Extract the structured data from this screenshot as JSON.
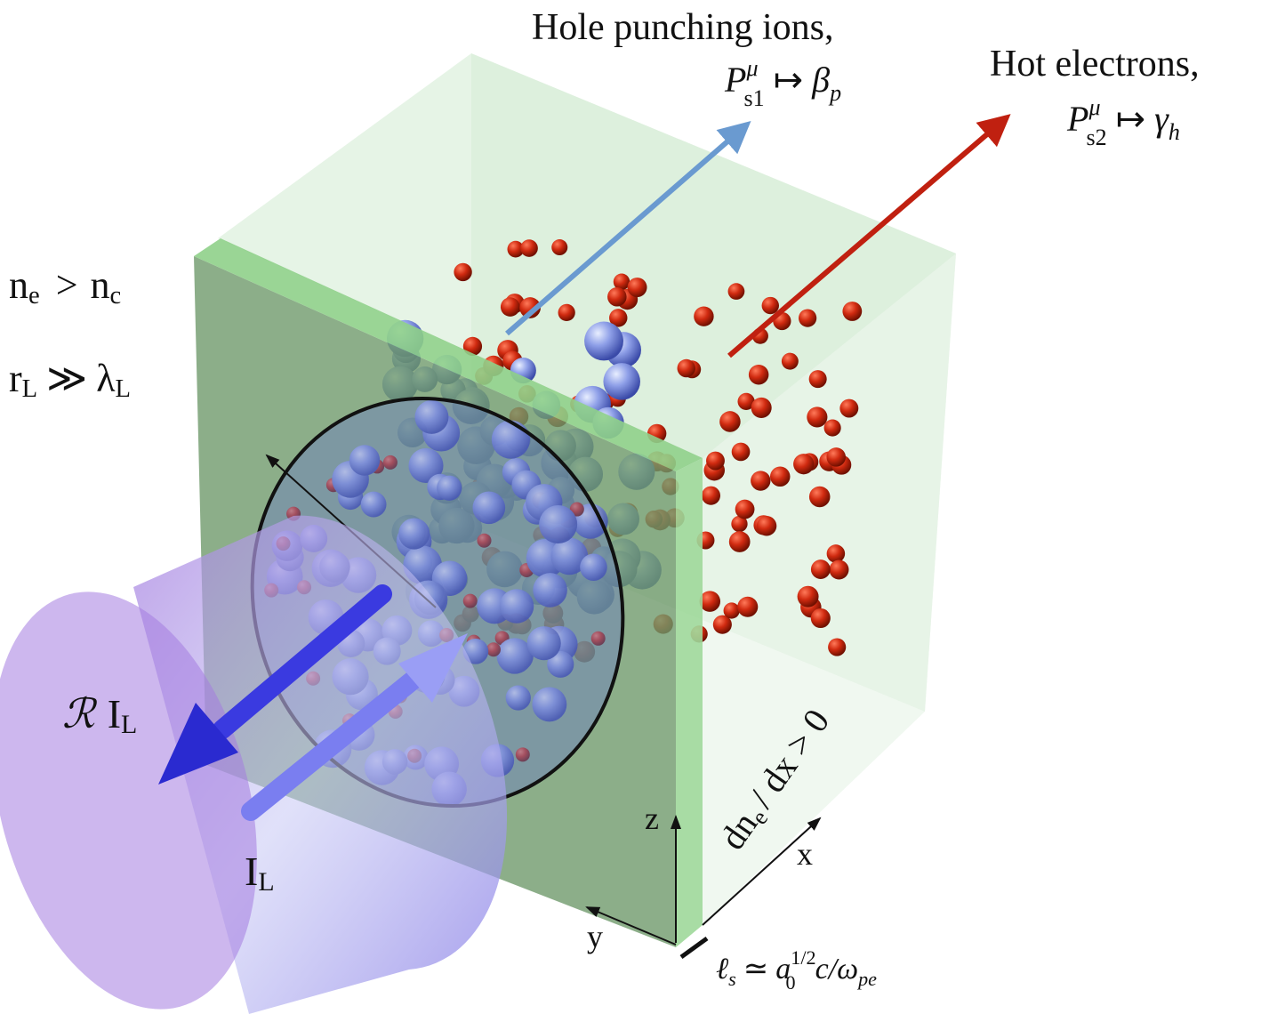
{
  "labels": {
    "hole_punching": {
      "title": "Hole punching ions,",
      "P": "P",
      "sup": "μ",
      "sub": "s1",
      "maps": "↦",
      "target": "β",
      "target_sub": "p"
    },
    "hot_electrons": {
      "title": "Hot electrons,",
      "P": "P",
      "sup": "μ",
      "sub": "s2",
      "maps": "↦",
      "target": "γ",
      "target_sub": "h"
    },
    "density": {
      "n1": "n",
      "sub1": "e",
      "op": ">",
      "n2": "n",
      "sub2": "c"
    },
    "radius": {
      "r": "r",
      "sub1": "L",
      "op": "≫",
      "lambda": "λ",
      "sub2": "L"
    },
    "reflected": {
      "R": "ℛ",
      "I": "I",
      "sub": "L"
    },
    "incident": {
      "I": "I",
      "sub": "L"
    },
    "gradient": {
      "dn": "dn",
      "sub": "e",
      "rest": "/ dx > 0"
    },
    "axes": {
      "x": "x",
      "y": "y",
      "z": "z"
    },
    "skin": {
      "l": "ℓ",
      "l_sub": "s",
      "sim": "≃",
      "a": "a",
      "a_sub": "0",
      "a_sup": "1/2",
      "rest": "c/ω",
      "rest_sub": "pe"
    }
  }
}
